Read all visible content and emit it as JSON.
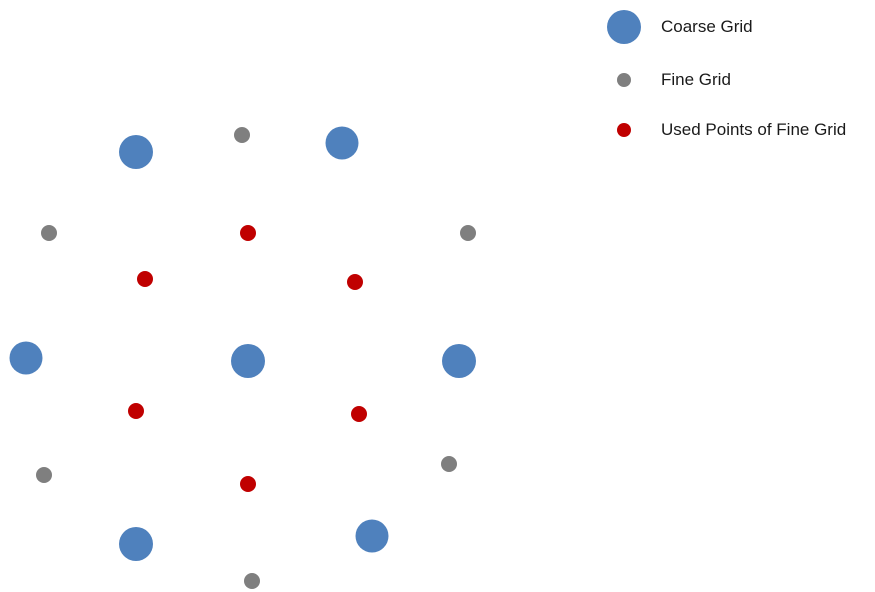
{
  "colors": {
    "coarse": "#4f81bd",
    "fine": "#7f7f7f",
    "used": "#c00000"
  },
  "legend": {
    "coarse_label": "Coarse Grid",
    "fine_label": "Fine Grid",
    "used_label": "Used Points of Fine Grid"
  },
  "point_sets": {
    "coarse_grid_count": 8,
    "fine_grid_count": 7,
    "used_points_count": 7
  }
}
